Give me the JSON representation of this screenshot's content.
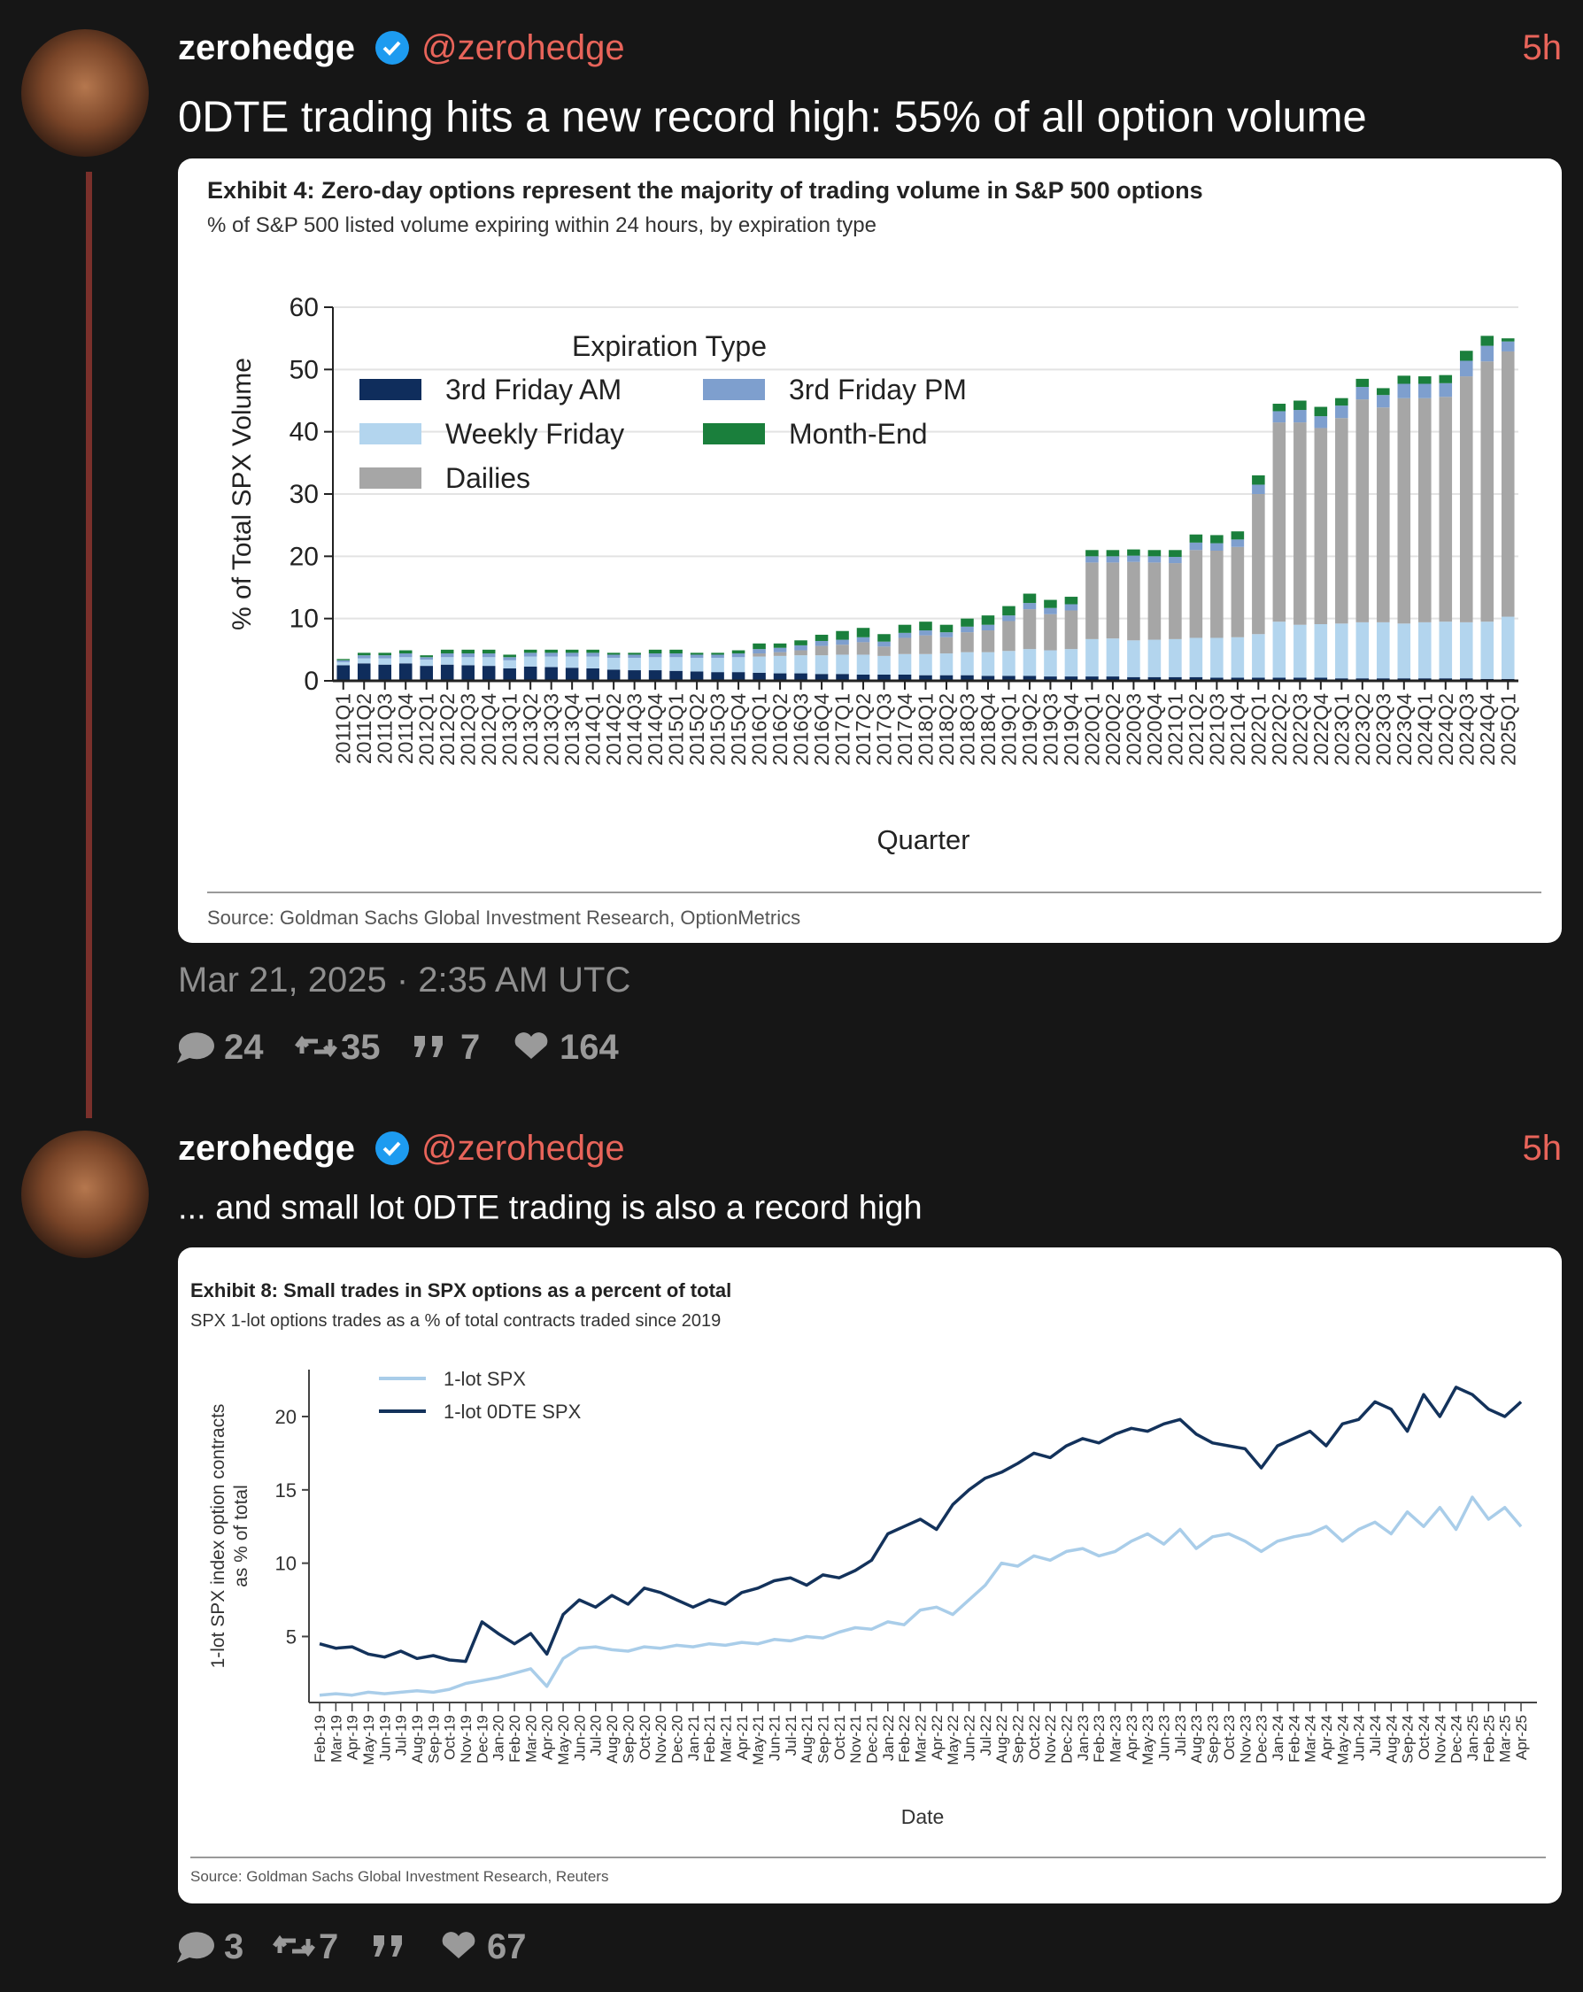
{
  "tweets": [
    {
      "name": "zerohedge",
      "handle": "@zerohedge",
      "time": "5h",
      "text": "0DTE trading hits a new record high: 55% of all option volume",
      "date": "Mar 21, 2025 · 2:35 AM UTC",
      "stats": {
        "replies": 24,
        "retweets": 35,
        "quotes": 7,
        "likes": 164
      }
    },
    {
      "name": "zerohedge",
      "handle": "@zerohedge",
      "time": "5h",
      "text": "... and small lot 0DTE trading is also a record high",
      "stats": {
        "replies": 3,
        "retweets": 7,
        "likes": 67
      }
    }
  ],
  "chart_data": [
    {
      "type": "bar",
      "stacked": true,
      "title": "Exhibit 4: Zero-day options represent the majority of trading volume in S&P 500 options",
      "subtitle": "% of S&P 500 listed volume expiring within 24 hours, by expiration type",
      "ylabel": "% of Total SPX Volume",
      "xlabel": "Quarter",
      "legend_title": "Expiration Type",
      "source": "Source: Goldman Sachs Global Investment Research, OptionMetrics",
      "ylim": [
        0,
        60
      ],
      "yticks": [
        0,
        10,
        20,
        30,
        40,
        50,
        60
      ],
      "grid": true,
      "categories": [
        "2011Q1",
        "2011Q2",
        "2011Q3",
        "2011Q4",
        "2012Q1",
        "2012Q2",
        "2012Q3",
        "2012Q4",
        "2013Q1",
        "2013Q2",
        "2013Q3",
        "2013Q4",
        "2014Q1",
        "2014Q2",
        "2014Q3",
        "2014Q4",
        "2015Q1",
        "2015Q2",
        "2015Q3",
        "2015Q4",
        "2016Q1",
        "2016Q2",
        "2016Q3",
        "2016Q4",
        "2017Q1",
        "2017Q2",
        "2017Q3",
        "2017Q4",
        "2018Q1",
        "2018Q2",
        "2018Q3",
        "2018Q4",
        "2019Q1",
        "2019Q2",
        "2019Q3",
        "2019Q4",
        "2020Q1",
        "2020Q2",
        "2020Q3",
        "2020Q4",
        "2021Q1",
        "2021Q2",
        "2021Q3",
        "2021Q4",
        "2022Q1",
        "2022Q2",
        "2022Q3",
        "2022Q4",
        "2023Q1",
        "2023Q2",
        "2023Q3",
        "2023Q4",
        "2024Q1",
        "2024Q2",
        "2024Q3",
        "2024Q4",
        "2025Q1"
      ],
      "series": [
        {
          "name": "3rd Friday AM",
          "color": "#0f2d5c",
          "values": [
            2.5,
            2.8,
            2.6,
            2.8,
            2.4,
            2.6,
            2.5,
            2.4,
            2.0,
            2.3,
            2.2,
            2.1,
            2.0,
            1.8,
            1.7,
            1.7,
            1.6,
            1.5,
            1.4,
            1.4,
            1.3,
            1.2,
            1.2,
            1.1,
            1.1,
            1.0,
            1.0,
            1.0,
            0.9,
            0.9,
            0.9,
            0.8,
            0.8,
            0.8,
            0.7,
            0.7,
            0.7,
            0.7,
            0.6,
            0.6,
            0.6,
            0.6,
            0.5,
            0.5,
            0.5,
            0.5,
            0.5,
            0.5,
            0.4,
            0.4,
            0.4,
            0.4,
            0.4,
            0.4,
            0.4,
            0.3,
            0.3
          ]
        },
        {
          "name": "Weekly Friday",
          "color": "#b3d5ee",
          "values": [
            0.5,
            0.8,
            1.0,
            1.0,
            1.0,
            1.2,
            1.3,
            1.4,
            1.3,
            1.6,
            1.7,
            1.8,
            1.9,
            1.9,
            2.0,
            2.1,
            2.2,
            2.2,
            2.3,
            2.4,
            2.6,
            2.8,
            2.9,
            3.0,
            3.1,
            3.2,
            3.0,
            3.3,
            3.4,
            3.5,
            3.7,
            3.8,
            4.0,
            4.3,
            4.2,
            4.4,
            6.0,
            6.1,
            5.9,
            6.0,
            6.1,
            6.3,
            6.4,
            6.5,
            7.0,
            9.0,
            8.5,
            8.6,
            8.8,
            9.0,
            9.0,
            8.8,
            9.0,
            9.1,
            9.0,
            9.2,
            10.0
          ]
        },
        {
          "name": "Dailies",
          "color": "#a6a6a6",
          "values": [
            0,
            0,
            0,
            0,
            0,
            0,
            0,
            0,
            0,
            0,
            0,
            0,
            0,
            0,
            0,
            0,
            0,
            0,
            0,
            0,
            0.5,
            0.6,
            0.8,
            1.5,
            1.6,
            2.0,
            1.5,
            2.6,
            3.0,
            2.6,
            3.2,
            3.5,
            4.8,
            6.4,
            5.8,
            6.2,
            12.3,
            12.2,
            12.6,
            12.4,
            12.2,
            14.1,
            14.0,
            14.5,
            22.5,
            32.0,
            32.5,
            31.5,
            33.0,
            35.8,
            34.5,
            36.2,
            36.0,
            36.1,
            39.5,
            41.8,
            42.6
          ]
        },
        {
          "name": "3rd Friday PM",
          "color": "#7e9fce",
          "values": [
            0.3,
            0.5,
            0.5,
            0.6,
            0.4,
            0.6,
            0.6,
            0.6,
            0.5,
            0.6,
            0.6,
            0.6,
            0.6,
            0.5,
            0.5,
            0.6,
            0.6,
            0.5,
            0.5,
            0.6,
            0.7,
            0.7,
            0.8,
            0.8,
            0.8,
            0.8,
            0.8,
            0.8,
            0.8,
            0.8,
            0.9,
            0.9,
            0.9,
            1.0,
            1.0,
            1.0,
            1.0,
            1.0,
            1.0,
            1.0,
            1.0,
            1.2,
            1.2,
            1.2,
            1.5,
            1.8,
            2.0,
            1.9,
            2.0,
            2.0,
            2.0,
            2.3,
            2.3,
            2.2,
            2.5,
            2.5,
            1.6
          ]
        },
        {
          "name": "Month-End",
          "color": "#1a7f3c",
          "values": [
            0.2,
            0.4,
            0.4,
            0.5,
            0.3,
            0.6,
            0.6,
            0.6,
            0.4,
            0.5,
            0.5,
            0.5,
            0.5,
            0.3,
            0.3,
            0.6,
            0.6,
            0.3,
            0.3,
            0.5,
            0.9,
            0.7,
            0.8,
            1.0,
            1.4,
            1.5,
            1.2,
            1.3,
            1.4,
            1.2,
            1.3,
            1.5,
            1.5,
            1.5,
            1.3,
            1.2,
            1.0,
            1.0,
            1.0,
            1.0,
            1.1,
            1.3,
            1.3,
            1.3,
            1.5,
            1.2,
            1.5,
            1.5,
            1.2,
            1.3,
            1.1,
            1.3,
            1.2,
            1.3,
            1.6,
            1.6,
            0.5
          ]
        }
      ]
    },
    {
      "type": "line",
      "title": "Exhibit 8: Small trades in SPX options as a percent of total",
      "subtitle": "SPX 1-lot options trades as a % of total contracts traded since 2019",
      "ylabel": [
        "1-lot SPX index option contracts",
        "as % of total"
      ],
      "xlabel": "Date",
      "source": "Source: Goldman Sachs Global Investment Research, Reuters",
      "ylim": [
        0.5,
        23.2
      ],
      "yticks": [
        5,
        10,
        15,
        20
      ],
      "categories": [
        "Feb-19",
        "Mar-19",
        "Apr-19",
        "May-19",
        "Jun-19",
        "Jul-19",
        "Aug-19",
        "Sep-19",
        "Oct-19",
        "Nov-19",
        "Dec-19",
        "Jan-20",
        "Feb-20",
        "Mar-20",
        "Apr-20",
        "May-20",
        "Jun-20",
        "Jul-20",
        "Aug-20",
        "Sep-20",
        "Oct-20",
        "Nov-20",
        "Dec-20",
        "Jan-21",
        "Feb-21",
        "Mar-21",
        "Apr-21",
        "May-21",
        "Jun-21",
        "Jul-21",
        "Aug-21",
        "Sep-21",
        "Oct-21",
        "Nov-21",
        "Dec-21",
        "Jan-22",
        "Feb-22",
        "Mar-22",
        "Apr-22",
        "May-22",
        "Jun-22",
        "Jul-22",
        "Aug-22",
        "Sep-22",
        "Oct-22",
        "Nov-22",
        "Dec-22",
        "Jan-23",
        "Feb-23",
        "Mar-23",
        "Apr-23",
        "May-23",
        "Jun-23",
        "Jul-23",
        "Aug-23",
        "Sep-23",
        "Oct-23",
        "Nov-23",
        "Dec-23",
        "Jan-24",
        "Feb-24",
        "Mar-24",
        "Apr-24",
        "May-24",
        "Jun-24",
        "Jul-24",
        "Aug-24",
        "Sep-24",
        "Oct-24",
        "Nov-24",
        "Dec-24",
        "Jan-25",
        "Feb-25",
        "Mar-25",
        "Apr-25"
      ],
      "series": [
        {
          "name": "1-lot SPX",
          "color": "#a9cde9",
          "values": [
            1.0,
            1.1,
            1.0,
            1.2,
            1.1,
            1.2,
            1.3,
            1.2,
            1.4,
            1.8,
            2.0,
            2.2,
            2.5,
            2.8,
            1.6,
            3.5,
            4.2,
            4.3,
            4.1,
            4.0,
            4.3,
            4.2,
            4.4,
            4.3,
            4.5,
            4.4,
            4.6,
            4.5,
            4.8,
            4.7,
            5.0,
            4.9,
            5.3,
            5.6,
            5.5,
            6.0,
            5.8,
            6.8,
            7.0,
            6.5,
            7.5,
            8.5,
            10.0,
            9.8,
            10.5,
            10.2,
            10.8,
            11.0,
            10.5,
            10.8,
            11.5,
            12.0,
            11.3,
            12.3,
            11.0,
            11.8,
            12.0,
            11.5,
            10.8,
            11.5,
            11.8,
            12.0,
            12.5,
            11.5,
            12.3,
            12.8,
            12.0,
            13.5,
            12.5,
            13.8,
            12.3,
            14.5,
            13.0,
            13.8,
            12.5
          ]
        },
        {
          "name": "1-lot 0DTE SPX",
          "color": "#13325b",
          "values": [
            4.5,
            4.2,
            4.3,
            3.8,
            3.6,
            4.0,
            3.5,
            3.7,
            3.4,
            3.3,
            6.0,
            5.2,
            4.5,
            5.2,
            3.8,
            6.5,
            7.5,
            7.0,
            7.8,
            7.2,
            8.3,
            8.0,
            7.5,
            7.0,
            7.5,
            7.2,
            8.0,
            8.3,
            8.8,
            9.0,
            8.5,
            9.2,
            9.0,
            9.5,
            10.2,
            12.0,
            12.5,
            13.0,
            12.3,
            14.0,
            15.0,
            15.8,
            16.2,
            16.8,
            17.5,
            17.2,
            18.0,
            18.5,
            18.2,
            18.8,
            19.2,
            19.0,
            19.5,
            19.8,
            18.8,
            18.2,
            18.0,
            17.8,
            16.5,
            18.0,
            18.5,
            19.0,
            18.0,
            19.5,
            19.8,
            21.0,
            20.5,
            19.0,
            21.5,
            20.0,
            22.0,
            21.5,
            20.5,
            20.0,
            21.0
          ]
        }
      ]
    }
  ]
}
